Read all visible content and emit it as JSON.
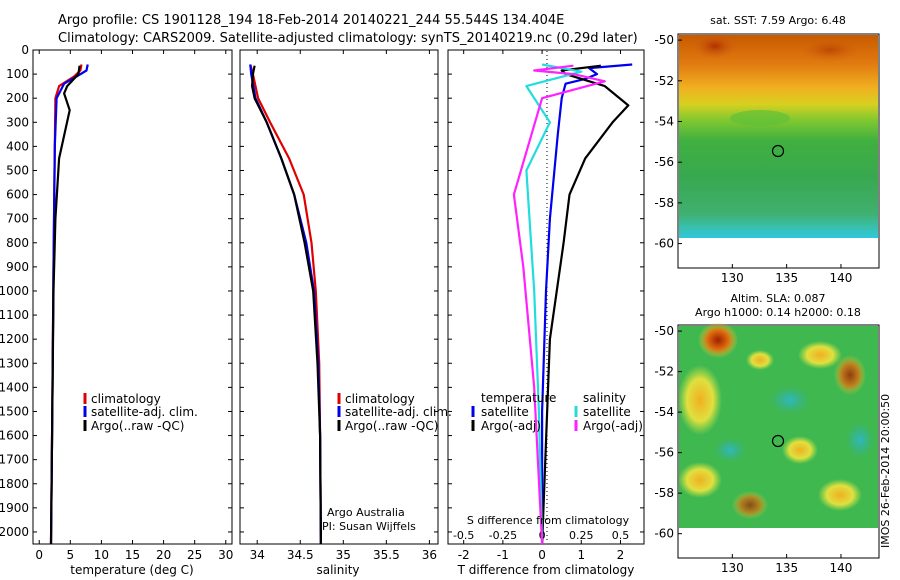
{
  "header": {
    "line1": "Argo profile: CS 1901128_194 18-Feb-2014 20140221_244 55.544S 134.404E",
    "line2": "Climatology: CARS2009. Satellite-adjusted climatology: synTS_20140219.nc (0.29d later)"
  },
  "colors": {
    "climatology": "#e00000",
    "satellite": "#0000ee",
    "argo": "#000000",
    "sal_satellite": "#22dddd",
    "sal_argo": "#ff22ff"
  },
  "panels": {
    "temperature": {
      "xlabel": "temperature (deg C)",
      "legend": [
        "climatology",
        "satellite-adj. clim.",
        "Argo(..raw -QC)"
      ]
    },
    "salinity": {
      "xlabel": "salinity",
      "legend": [
        "climatology",
        "satellite-adj. clim.",
        "Argo(..raw -QC)"
      ],
      "credit1": "Argo Australia",
      "credit2": "PI: Susan Wijffels"
    },
    "difference": {
      "xlabel": "T difference from climatology",
      "top_axis_label": "S difference from climatology",
      "legend_temp_title": "temperature",
      "legend_sal_title": "salinity",
      "legend_temp": [
        "satellite",
        "Argo(-adj)"
      ],
      "legend_sal": [
        "satellite",
        "Argo(-adj)"
      ]
    },
    "sst_map": {
      "title": "sat. SST: 7.59 Argo: 6.48"
    },
    "sla_map": {
      "title1": "Altim. SLA: 0.087",
      "title2": "Argo h1000: 0.14 h2000: 0.18"
    },
    "stamp": "IMOS 26-Feb-2014 20:00:50"
  },
  "chart_data": [
    {
      "type": "line",
      "title": "",
      "xlabel": "temperature (deg C)",
      "ylabel": "",
      "xlim": [
        -1,
        31
      ],
      "ylim": [
        2050,
        0
      ],
      "xticks": [
        0,
        5,
        10,
        15,
        20,
        25,
        30
      ],
      "yticks": [
        0,
        100,
        200,
        300,
        400,
        500,
        600,
        700,
        800,
        900,
        1000,
        1100,
        1200,
        1300,
        1400,
        1500,
        1600,
        1700,
        1800,
        1900,
        2000
      ],
      "series": [
        {
          "name": "climatology",
          "color": "#e00000",
          "x": [
            6.8,
            6.6,
            5.6,
            3.2,
            2.6,
            2.5,
            2.3,
            2.1,
            1.9
          ],
          "y": [
            60,
            85,
            110,
            150,
            200,
            400,
            900,
            1500,
            2050
          ]
        },
        {
          "name": "satellite-adj. clim.",
          "color": "#0000ee",
          "x": [
            7.8,
            7.6,
            6.0,
            4.0,
            2.8,
            2.5,
            2.3,
            2.1,
            1.9
          ],
          "y": [
            60,
            85,
            110,
            140,
            200,
            400,
            900,
            1500,
            2050
          ]
        },
        {
          "name": "Argo(..raw -QC)",
          "color": "#000000",
          "x": [
            6.5,
            6.3,
            4.5,
            4.0,
            4.9,
            3.2,
            2.6,
            2.3,
            2.1,
            1.9
          ],
          "y": [
            65,
            100,
            150,
            180,
            250,
            450,
            700,
            1000,
            1500,
            2050
          ]
        }
      ]
    },
    {
      "type": "line",
      "title": "",
      "xlabel": "salinity",
      "ylabel": "",
      "xlim": [
        33.8,
        36.1
      ],
      "ylim": [
        2050,
        0
      ],
      "xticks": [
        34,
        34.5,
        35,
        35.5,
        36
      ],
      "series": [
        {
          "name": "climatology",
          "color": "#e00000",
          "x": [
            33.92,
            33.95,
            34.01,
            34.15,
            34.37,
            34.54,
            34.63,
            34.68,
            34.72,
            34.73,
            34.74
          ],
          "y": [
            60,
            100,
            200,
            300,
            450,
            600,
            800,
            1000,
            1300,
            1600,
            2050
          ]
        },
        {
          "name": "satellite-adj. clim.",
          "color": "#0000ee",
          "x": [
            33.92,
            33.93,
            33.98,
            34.11,
            34.28,
            34.43,
            34.57,
            34.66,
            34.71,
            34.73,
            34.74
          ],
          "y": [
            60,
            100,
            200,
            300,
            450,
            600,
            800,
            1000,
            1300,
            1600,
            2050
          ]
        },
        {
          "name": "Argo(..raw -QC)",
          "color": "#000000",
          "x": [
            33.97,
            33.95,
            33.94,
            33.97,
            34.11,
            34.28,
            34.43,
            34.55,
            34.65,
            34.7,
            34.73,
            34.74
          ],
          "y": [
            65,
            100,
            150,
            200,
            300,
            450,
            600,
            800,
            1000,
            1300,
            1600,
            2050
          ]
        }
      ]
    },
    {
      "type": "line",
      "title": "",
      "xlabel": "T difference from climatology",
      "ylabel": "",
      "xlim": [
        -2.4,
        2.6
      ],
      "ylim": [
        2050,
        0
      ],
      "xticks": [
        -2,
        -1,
        0,
        1,
        2
      ],
      "top_axis": {
        "label": "S difference from climatology",
        "ticks": [
          -0.5,
          -0.25,
          0,
          0.25,
          0.5
        ]
      },
      "series": [
        {
          "name": "temperature satellite",
          "color": "#0000ee",
          "x": [
            2.3,
            1.2,
            1.4,
            1.1,
            0.6,
            0.5,
            0.4,
            0.2,
            0.1,
            0.0,
            0.0
          ],
          "y": [
            60,
            75,
            100,
            120,
            140,
            200,
            350,
            700,
            1000,
            1500,
            2050
          ]
        },
        {
          "name": "temperature Argo(-adj)",
          "color": "#000000",
          "x": [
            1.5,
            0.5,
            0.6,
            1.6,
            2.2,
            1.8,
            1.1,
            0.7,
            0.55,
            0.2,
            0.0
          ],
          "y": [
            65,
            85,
            100,
            150,
            230,
            300,
            450,
            600,
            800,
            1200,
            2050
          ]
        },
        {
          "name": "salinity satellite",
          "color": "#22dddd",
          "x": [
            0.0,
            0.25,
            -0.1,
            0.05,
            -0.1,
            -0.08,
            -0.05,
            -0.02,
            0.0
          ],
          "y": [
            60,
            90,
            150,
            300,
            500,
            700,
            1000,
            1500,
            2050
          ]
        },
        {
          "name": "salinity Argo(-adj)",
          "color": "#ff22ff",
          "x": [
            0.2,
            -0.05,
            0.2,
            0.4,
            0.0,
            -0.18,
            -0.12,
            -0.05,
            0.0
          ],
          "y": [
            65,
            85,
            100,
            130,
            200,
            600,
            900,
            1400,
            2050
          ]
        }
      ]
    },
    {
      "type": "heatmap",
      "title": "sat. SST: 7.59 Argo: 6.48",
      "xlim": [
        125,
        143.5
      ],
      "ylim": [
        -61.2,
        -49.7
      ],
      "xticks": [
        130,
        135,
        140
      ],
      "yticks": [
        -50,
        -52,
        -54,
        -56,
        -58,
        -60
      ],
      "marker": {
        "lon": 134.404,
        "lat": -55.544
      }
    },
    {
      "type": "heatmap",
      "title": "Altim. SLA: 0.087",
      "xlim": [
        125,
        143.5
      ],
      "ylim": [
        -61.2,
        -49.7
      ],
      "xticks": [
        130,
        135,
        140
      ],
      "yticks": [
        -50,
        -52,
        -54,
        -56,
        -58,
        -60
      ],
      "marker": {
        "lon": 134.404,
        "lat": -55.544
      }
    }
  ]
}
